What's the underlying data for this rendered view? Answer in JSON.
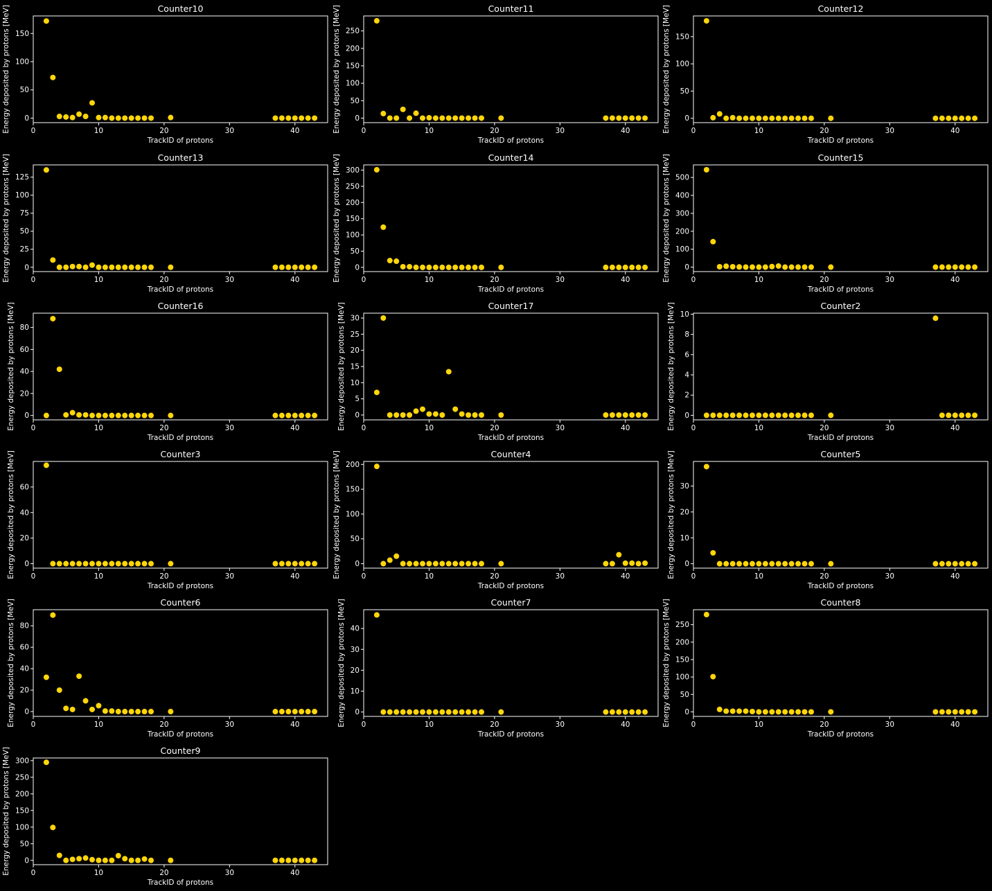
{
  "figure": {
    "background": "#000000",
    "foreground": "#ffffff",
    "marker_color": "#ffd60a"
  },
  "chart_data": [
    {
      "type": "scatter",
      "title": "Counter10",
      "xlabel": "TrackID of protons",
      "ylabel": "Energy deposited by protons [MeV]",
      "xlim": [
        0,
        45
      ],
      "ylim": [
        -8,
        181
      ],
      "xticks": [
        0,
        10,
        20,
        30,
        40
      ],
      "yticks": [
        0,
        50,
        100,
        150
      ],
      "x": [
        2,
        3,
        4,
        5,
        6,
        7,
        8,
        9,
        10,
        11,
        12,
        13,
        14,
        15,
        16,
        17,
        18,
        21,
        37,
        38,
        39,
        40,
        41,
        42,
        43
      ],
      "y": [
        172,
        72,
        3,
        2,
        1,
        7,
        3,
        27,
        1,
        1,
        0,
        0,
        0,
        0,
        0,
        0,
        0,
        1,
        0,
        0,
        0,
        0,
        0,
        0,
        0
      ]
    },
    {
      "type": "scatter",
      "title": "Counter11",
      "xlabel": "TrackID of protons",
      "ylabel": "Energy deposited by protons [MeV]",
      "xlim": [
        0,
        45
      ],
      "ylim": [
        -13,
        293
      ],
      "xticks": [
        0,
        10,
        20,
        30,
        40
      ],
      "yticks": [
        0,
        50,
        100,
        150,
        200,
        250
      ],
      "x": [
        2,
        3,
        4,
        5,
        6,
        7,
        8,
        9,
        10,
        11,
        12,
        13,
        14,
        15,
        16,
        17,
        18,
        21,
        37,
        38,
        39,
        40,
        41,
        42,
        43
      ],
      "y": [
        279,
        13,
        0,
        0,
        25,
        0,
        14,
        0,
        1,
        0,
        0,
        0,
        0,
        0,
        0,
        0,
        0,
        0,
        0,
        0,
        0,
        0,
        0,
        0,
        0
      ]
    },
    {
      "type": "scatter",
      "title": "Counter12",
      "xlabel": "TrackID of protons",
      "ylabel": "Energy deposited by protons [MeV]",
      "xlim": [
        0,
        45
      ],
      "ylim": [
        -8,
        188
      ],
      "xticks": [
        0,
        10,
        20,
        30,
        40
      ],
      "yticks": [
        0,
        50,
        100,
        150
      ],
      "x": [
        2,
        3,
        4,
        5,
        6,
        7,
        8,
        9,
        10,
        11,
        12,
        13,
        14,
        15,
        16,
        17,
        18,
        21,
        37,
        38,
        39,
        40,
        41,
        42,
        43
      ],
      "y": [
        179,
        1,
        8,
        0,
        1,
        0,
        0,
        0,
        0,
        0,
        0,
        0,
        0,
        0,
        0,
        0,
        0,
        0,
        0,
        0,
        0,
        0,
        0,
        0,
        0
      ]
    },
    {
      "type": "scatter",
      "title": "Counter13",
      "xlabel": "TrackID of protons",
      "ylabel": "Energy deposited by protons [MeV]",
      "xlim": [
        0,
        45
      ],
      "ylim": [
        -6,
        142
      ],
      "xticks": [
        0,
        10,
        20,
        30,
        40
      ],
      "yticks": [
        0,
        25,
        50,
        75,
        100,
        125
      ],
      "x": [
        2,
        3,
        4,
        5,
        6,
        7,
        8,
        9,
        10,
        11,
        12,
        13,
        14,
        15,
        16,
        17,
        18,
        21,
        37,
        38,
        39,
        40,
        41,
        42,
        43
      ],
      "y": [
        135,
        10,
        0,
        0,
        1,
        1,
        0,
        3,
        0,
        0,
        0,
        0,
        0,
        0,
        0,
        0,
        0,
        0,
        0,
        0,
        0,
        0,
        0,
        0,
        0
      ]
    },
    {
      "type": "scatter",
      "title": "Counter14",
      "xlabel": "TrackID of protons",
      "ylabel": "Energy deposited by protons [MeV]",
      "xlim": [
        0,
        45
      ],
      "ylim": [
        -13,
        316
      ],
      "xticks": [
        0,
        10,
        20,
        30,
        40
      ],
      "yticks": [
        0,
        50,
        100,
        150,
        200,
        250,
        300
      ],
      "x": [
        2,
        3,
        4,
        5,
        6,
        7,
        8,
        9,
        10,
        11,
        12,
        13,
        14,
        15,
        16,
        17,
        18,
        21,
        37,
        38,
        39,
        40,
        41,
        42,
        43
      ],
      "y": [
        301,
        124,
        21,
        19,
        2,
        2,
        0,
        0,
        0,
        0,
        0,
        0,
        0,
        0,
        0,
        0,
        0,
        0,
        0,
        0,
        0,
        0,
        0,
        0,
        0
      ]
    },
    {
      "type": "scatter",
      "title": "Counter15",
      "xlabel": "TrackID of protons",
      "ylabel": "Energy deposited by protons [MeV]",
      "xlim": [
        0,
        45
      ],
      "ylim": [
        -25,
        570
      ],
      "xticks": [
        0,
        10,
        20,
        30,
        40
      ],
      "yticks": [
        0,
        100,
        200,
        300,
        400,
        500
      ],
      "x": [
        2,
        3,
        4,
        5,
        6,
        7,
        8,
        9,
        10,
        11,
        12,
        13,
        14,
        15,
        16,
        17,
        18,
        21,
        37,
        38,
        39,
        40,
        41,
        42,
        43
      ],
      "y": [
        543,
        142,
        2,
        5,
        2,
        1,
        0,
        0,
        0,
        0,
        3,
        6,
        0,
        0,
        0,
        0,
        0,
        0,
        0,
        0,
        0,
        0,
        0,
        0,
        0
      ]
    },
    {
      "type": "scatter",
      "title": "Counter16",
      "xlabel": "TrackID of protons",
      "ylabel": "Energy deposited by protons [MeV]",
      "xlim": [
        0,
        45
      ],
      "ylim": [
        -4,
        93
      ],
      "xticks": [
        0,
        10,
        20,
        30,
        40
      ],
      "yticks": [
        0,
        20,
        40,
        60,
        80
      ],
      "x": [
        2,
        3,
        4,
        5,
        6,
        7,
        8,
        9,
        10,
        11,
        12,
        13,
        14,
        15,
        16,
        17,
        18,
        21,
        37,
        38,
        39,
        40,
        41,
        42,
        43
      ],
      "y": [
        0,
        88,
        42,
        0.5,
        2.5,
        0.5,
        0.5,
        0,
        0,
        0,
        0,
        0,
        0,
        0,
        0,
        0,
        0,
        0,
        0,
        0,
        0,
        0,
        0,
        0,
        0
      ]
    },
    {
      "type": "scatter",
      "title": "Counter17",
      "xlabel": "TrackID of protons",
      "ylabel": "Energy deposited by protons [MeV]",
      "xlim": [
        0,
        45
      ],
      "ylim": [
        -1.5,
        31.5
      ],
      "xticks": [
        0,
        10,
        20,
        30,
        40
      ],
      "yticks": [
        0,
        5,
        10,
        15,
        20,
        25,
        30
      ],
      "x": [
        2,
        3,
        4,
        5,
        6,
        7,
        8,
        9,
        10,
        11,
        12,
        13,
        14,
        15,
        16,
        17,
        18,
        21,
        37,
        38,
        39,
        40,
        41,
        42,
        43
      ],
      "y": [
        7,
        30,
        0,
        0,
        0,
        0,
        1.2,
        1.8,
        0.3,
        0.3,
        0,
        13.4,
        1.8,
        0.3,
        0,
        0,
        0,
        0,
        0,
        0,
        0,
        0,
        0,
        0,
        0
      ]
    },
    {
      "type": "scatter",
      "title": "Counter2",
      "xlabel": "TrackID of protons",
      "ylabel": "Energy deposited by protons [MeV]",
      "xlim": [
        0,
        45
      ],
      "ylim": [
        -0.45,
        10.1
      ],
      "xticks": [
        0,
        10,
        20,
        30,
        40
      ],
      "yticks": [
        0,
        2,
        4,
        6,
        8,
        10
      ],
      "x": [
        2,
        3,
        4,
        5,
        6,
        7,
        8,
        9,
        10,
        11,
        12,
        13,
        14,
        15,
        16,
        17,
        18,
        21,
        37,
        38,
        39,
        40,
        41,
        42,
        43
      ],
      "y": [
        0,
        0,
        0,
        0,
        0,
        0,
        0,
        0,
        0,
        0,
        0,
        0,
        0,
        0,
        0,
        0,
        0,
        0,
        9.6,
        0,
        0,
        0,
        0,
        0,
        0
      ]
    },
    {
      "type": "scatter",
      "title": "Counter3",
      "xlabel": "TrackID of protons",
      "ylabel": "Energy deposited by protons [MeV]",
      "xlim": [
        0,
        45
      ],
      "ylim": [
        -3.5,
        80
      ],
      "xticks": [
        0,
        10,
        20,
        30,
        40
      ],
      "yticks": [
        0,
        20,
        40,
        60
      ],
      "x": [
        2,
        3,
        4,
        5,
        6,
        7,
        8,
        9,
        10,
        11,
        12,
        13,
        14,
        15,
        16,
        17,
        18,
        21,
        37,
        38,
        39,
        40,
        41,
        42,
        43
      ],
      "y": [
        77,
        0,
        0,
        0,
        0,
        0,
        0,
        0,
        0,
        0,
        0,
        0,
        0,
        0,
        0,
        0,
        0,
        0,
        0,
        0,
        0,
        0,
        0,
        0,
        0
      ]
    },
    {
      "type": "scatter",
      "title": "Counter4",
      "xlabel": "TrackID of protons",
      "ylabel": "Energy deposited by protons [MeV]",
      "xlim": [
        0,
        45
      ],
      "ylim": [
        -9,
        206
      ],
      "xticks": [
        0,
        10,
        20,
        30,
        40
      ],
      "yticks": [
        0,
        50,
        100,
        150,
        200
      ],
      "x": [
        2,
        3,
        4,
        5,
        6,
        7,
        8,
        9,
        10,
        11,
        12,
        13,
        14,
        15,
        16,
        17,
        18,
        21,
        37,
        38,
        39,
        40,
        41,
        42,
        43
      ],
      "y": [
        196,
        0,
        7,
        15,
        0,
        0,
        0,
        0,
        0,
        0,
        0,
        0,
        0,
        0,
        0,
        0,
        0,
        0,
        0,
        0,
        18,
        1,
        1,
        0,
        1
      ]
    },
    {
      "type": "scatter",
      "title": "Counter5",
      "xlabel": "TrackID of protons",
      "ylabel": "Energy deposited by protons [MeV]",
      "xlim": [
        0,
        45
      ],
      "ylim": [
        -1.7,
        39.5
      ],
      "xticks": [
        0,
        10,
        20,
        30,
        40
      ],
      "yticks": [
        0,
        10,
        20,
        30
      ],
      "x": [
        2,
        3,
        4,
        5,
        6,
        7,
        8,
        9,
        10,
        11,
        12,
        13,
        14,
        15,
        16,
        17,
        18,
        21,
        37,
        38,
        39,
        40,
        41,
        42,
        43
      ],
      "y": [
        37.5,
        4.2,
        0,
        0,
        0,
        0,
        0,
        0,
        0,
        0,
        0,
        0,
        0,
        0,
        0,
        0,
        0,
        0,
        0,
        0,
        0,
        0,
        0,
        0,
        0
      ]
    },
    {
      "type": "scatter",
      "title": "Counter6",
      "xlabel": "TrackID of protons",
      "ylabel": "Energy deposited by protons [MeV]",
      "xlim": [
        0,
        45
      ],
      "ylim": [
        -4.5,
        95
      ],
      "xticks": [
        0,
        10,
        20,
        30,
        40
      ],
      "yticks": [
        0,
        20,
        40,
        60,
        80
      ],
      "x": [
        2,
        3,
        4,
        5,
        6,
        7,
        8,
        9,
        10,
        11,
        12,
        13,
        14,
        15,
        16,
        17,
        18,
        21,
        37,
        38,
        39,
        40,
        41,
        42,
        43
      ],
      "y": [
        32,
        90,
        20,
        3,
        2,
        33,
        10,
        2,
        5.5,
        0.5,
        0.5,
        0,
        0,
        0,
        0,
        0,
        0,
        0,
        0,
        0,
        0,
        0,
        0,
        0,
        0
      ]
    },
    {
      "type": "scatter",
      "title": "Counter7",
      "xlabel": "TrackID of protons",
      "ylabel": "Energy deposited by protons [MeV]",
      "xlim": [
        0,
        45
      ],
      "ylim": [
        -2.1,
        49
      ],
      "xticks": [
        0,
        10,
        20,
        30,
        40
      ],
      "yticks": [
        0,
        10,
        20,
        30,
        40
      ],
      "x": [
        2,
        3,
        4,
        5,
        6,
        7,
        8,
        9,
        10,
        11,
        12,
        13,
        14,
        15,
        16,
        17,
        18,
        21,
        37,
        38,
        39,
        40,
        41,
        42,
        43
      ],
      "y": [
        46.5,
        0,
        0,
        0,
        0,
        0,
        0,
        0,
        0,
        0,
        0,
        0,
        0,
        0,
        0,
        0,
        0,
        0,
        0,
        0,
        0,
        0,
        0,
        0,
        0
      ]
    },
    {
      "type": "scatter",
      "title": "Counter8",
      "xlabel": "TrackID of protons",
      "ylabel": "Energy deposited by protons [MeV]",
      "xlim": [
        0,
        45
      ],
      "ylim": [
        -13,
        293
      ],
      "xticks": [
        0,
        10,
        20,
        30,
        40
      ],
      "yticks": [
        0,
        50,
        100,
        150,
        200,
        250
      ],
      "x": [
        2,
        3,
        4,
        5,
        6,
        7,
        8,
        9,
        10,
        11,
        12,
        13,
        14,
        15,
        16,
        17,
        18,
        21,
        37,
        38,
        39,
        40,
        41,
        42,
        43
      ],
      "y": [
        279,
        101,
        7,
        2,
        2,
        2,
        2,
        1,
        0,
        0,
        0,
        0,
        0,
        0,
        0,
        0,
        0,
        0,
        0,
        0,
        0,
        0,
        0,
        0,
        0
      ]
    },
    {
      "type": "scatter",
      "title": "Counter9",
      "xlabel": "TrackID of protons",
      "ylabel": "Energy deposited by protons [MeV]",
      "xlim": [
        0,
        45
      ],
      "ylim": [
        -13,
        308
      ],
      "xticks": [
        0,
        10,
        20,
        30,
        40
      ],
      "yticks": [
        0,
        50,
        100,
        150,
        200,
        250,
        300
      ],
      "x": [
        2,
        3,
        4,
        5,
        6,
        7,
        8,
        9,
        10,
        11,
        12,
        13,
        14,
        15,
        16,
        17,
        18,
        21,
        37,
        38,
        39,
        40,
        41,
        42,
        43
      ],
      "y": [
        295,
        99,
        15,
        0,
        3,
        5,
        7,
        2,
        0,
        0,
        0,
        14,
        5,
        0,
        0,
        4,
        0,
        0,
        0,
        0,
        0,
        0,
        0,
        0,
        0
      ]
    }
  ]
}
